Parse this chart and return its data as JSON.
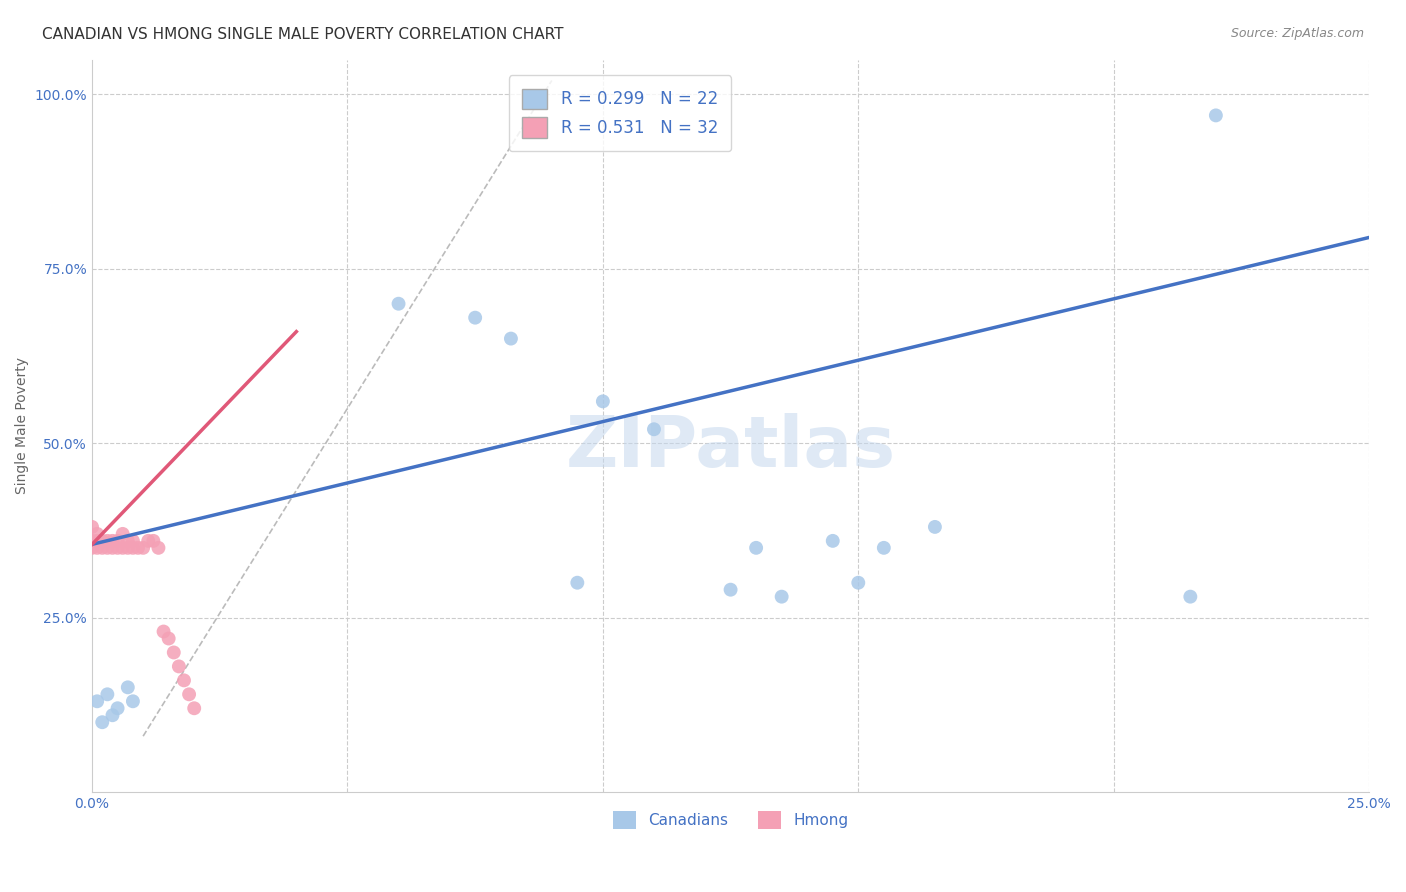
{
  "title": "CANADIAN VS HMONG SINGLE MALE POVERTY CORRELATION CHART",
  "source": "Source: ZipAtlas.com",
  "ylabel": "Single Male Poverty",
  "xlim": [
    0.0,
    0.25
  ],
  "ylim": [
    0.0,
    1.05
  ],
  "x_ticks": [
    0.0,
    0.05,
    0.1,
    0.15,
    0.2,
    0.25
  ],
  "y_ticks": [
    0.0,
    0.25,
    0.5,
    0.75,
    1.0
  ],
  "x_tick_labels": [
    "0.0%",
    "",
    "",
    "",
    "",
    "25.0%"
  ],
  "y_tick_labels": [
    "",
    "25.0%",
    "50.0%",
    "75.0%",
    "100.0%"
  ],
  "canadians_R": 0.299,
  "canadians_N": 22,
  "hmong_R": 0.531,
  "hmong_N": 32,
  "canadian_color": "#a8c8e8",
  "hmong_color": "#f4a0b5",
  "canadian_line_color": "#4472c4",
  "hmong_line_color": "#e05878",
  "background_color": "#ffffff",
  "watermark": "ZIPatlas",
  "canadians_x": [
    0.001,
    0.002,
    0.003,
    0.004,
    0.005,
    0.007,
    0.008,
    0.06,
    0.075,
    0.082,
    0.1,
    0.11,
    0.13,
    0.145,
    0.155,
    0.165,
    0.095,
    0.125,
    0.135,
    0.15,
    0.215,
    0.22
  ],
  "canadians_y": [
    0.13,
    0.1,
    0.14,
    0.11,
    0.12,
    0.15,
    0.13,
    0.7,
    0.68,
    0.65,
    0.56,
    0.52,
    0.35,
    0.36,
    0.35,
    0.38,
    0.3,
    0.29,
    0.28,
    0.3,
    0.28,
    0.97
  ],
  "hmong_x": [
    0.0,
    0.0,
    0.0,
    0.001,
    0.001,
    0.001,
    0.002,
    0.002,
    0.003,
    0.003,
    0.004,
    0.004,
    0.005,
    0.005,
    0.006,
    0.006,
    0.007,
    0.007,
    0.008,
    0.008,
    0.009,
    0.01,
    0.011,
    0.012,
    0.013,
    0.014,
    0.015,
    0.016,
    0.017,
    0.018,
    0.019,
    0.02
  ],
  "hmong_y": [
    0.35,
    0.36,
    0.38,
    0.35,
    0.36,
    0.37,
    0.35,
    0.36,
    0.35,
    0.36,
    0.35,
    0.36,
    0.35,
    0.36,
    0.35,
    0.37,
    0.35,
    0.36,
    0.35,
    0.36,
    0.35,
    0.35,
    0.36,
    0.36,
    0.35,
    0.23,
    0.22,
    0.2,
    0.18,
    0.16,
    0.14,
    0.12
  ],
  "canadian_line_x": [
    0.0,
    0.25
  ],
  "canadian_line_y": [
    0.355,
    0.795
  ],
  "hmong_line_x": [
    0.0,
    0.04
  ],
  "hmong_line_y": [
    0.355,
    0.66
  ],
  "dash_line_x": [
    0.01,
    0.09
  ],
  "dash_line_y": [
    0.08,
    1.02
  ],
  "grid_color": "#cccccc",
  "title_fontsize": 11,
  "axis_label_fontsize": 10,
  "tick_fontsize": 10,
  "legend_fontsize": 12,
  "marker_size": 100
}
